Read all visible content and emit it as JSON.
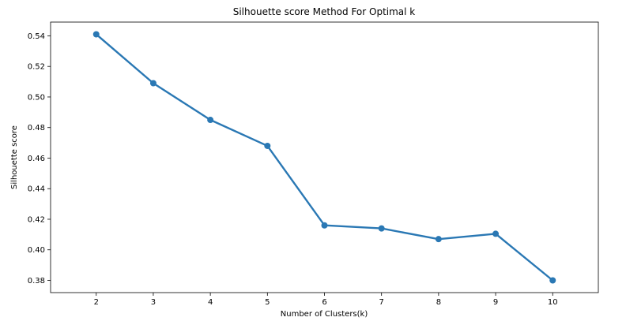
{
  "chart_data": {
    "type": "line",
    "title": "Silhouette score Method For Optimal k",
    "xlabel": "Number of Clusters(k)",
    "ylabel": "Silhouette score",
    "x": [
      2,
      3,
      4,
      5,
      6,
      7,
      8,
      9,
      10
    ],
    "series": [
      {
        "values": [
          0.541,
          0.509,
          0.485,
          0.468,
          0.416,
          0.414,
          0.407,
          0.4105,
          0.38
        ],
        "color": "#2a78b4"
      }
    ],
    "xticks": [
      "2",
      "3",
      "4",
      "5",
      "6",
      "7",
      "8",
      "9",
      "10"
    ],
    "yticks": [
      "0.38",
      "0.40",
      "0.42",
      "0.44",
      "0.46",
      "0.48",
      "0.50",
      "0.52",
      "0.54"
    ],
    "ytick_values": [
      0.38,
      0.4,
      0.42,
      0.44,
      0.46,
      0.48,
      0.5,
      0.52,
      0.54
    ],
    "xlim": [
      1.2,
      10.8
    ],
    "ylim": [
      0.372,
      0.549
    ],
    "grid": false,
    "legend": false
  }
}
